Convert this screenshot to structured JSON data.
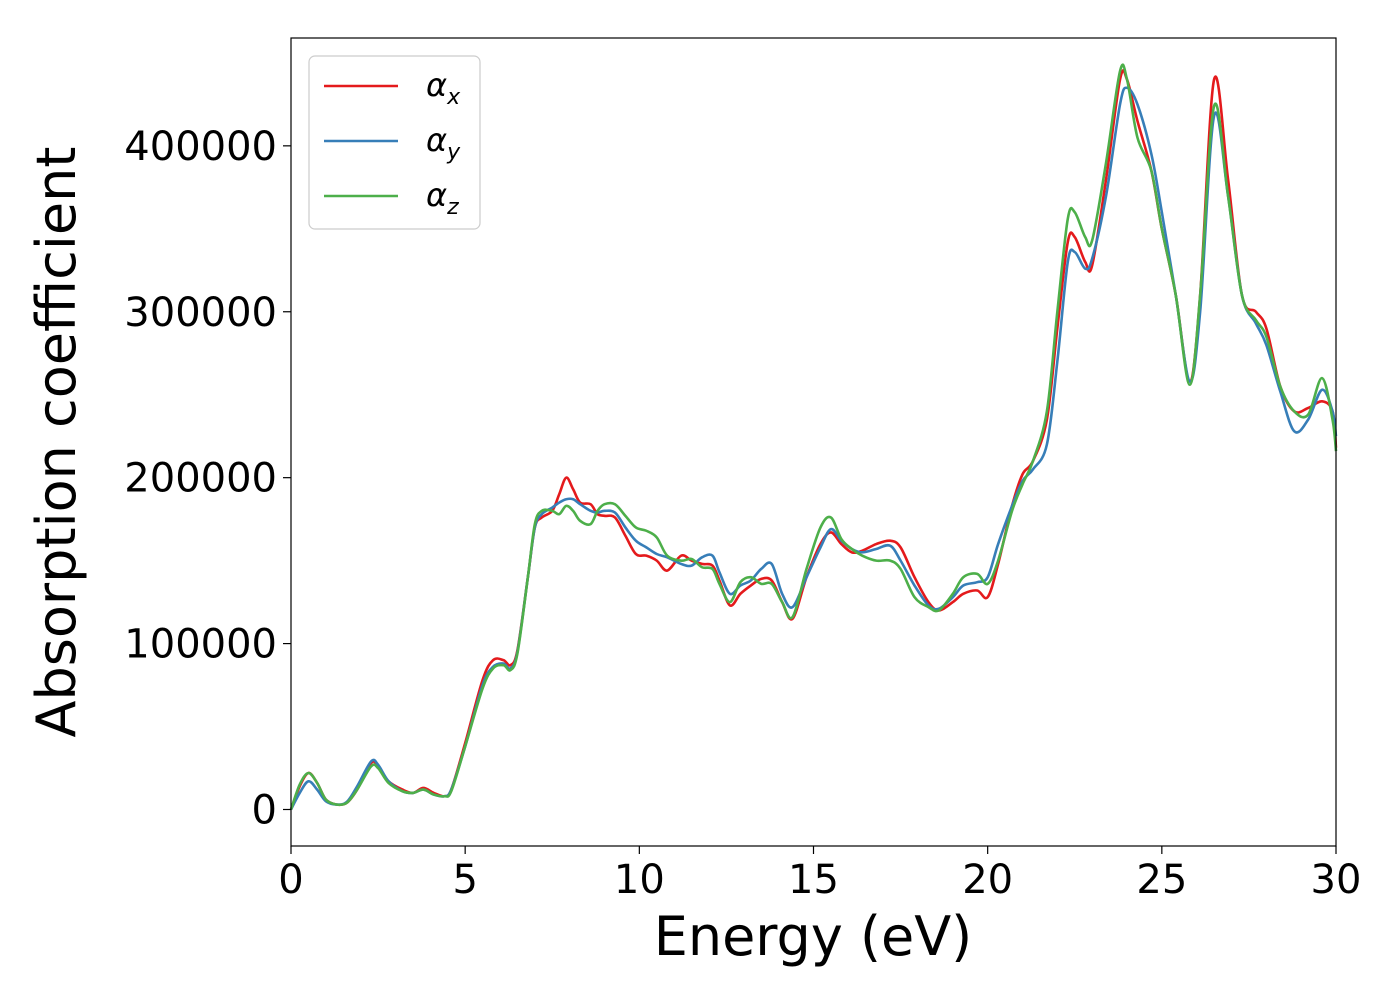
{
  "chart_data": {
    "type": "line",
    "title": "",
    "xlabel": "Energy (eV)",
    "ylabel": "Absorption coefficient",
    "xlim": [
      0,
      30
    ],
    "ylim": [
      -22000,
      465000
    ],
    "xticks": [
      0,
      5,
      10,
      15,
      20,
      25,
      30
    ],
    "xtick_labels": [
      "0",
      "5",
      "10",
      "15",
      "20",
      "25",
      "30"
    ],
    "yticks": [
      0,
      100000,
      200000,
      300000,
      400000
    ],
    "ytick_labels": [
      "0",
      "100000",
      "200000",
      "300000",
      "400000"
    ],
    "grid": false,
    "legend_position": "top-left",
    "series": [
      {
        "name": "α",
        "subscript": "x",
        "color": "#e41a1c",
        "points": [
          [
            0,
            0
          ],
          [
            0.25,
            14000
          ],
          [
            0.5,
            22000
          ],
          [
            0.75,
            16000
          ],
          [
            1.0,
            6000
          ],
          [
            1.3,
            3000
          ],
          [
            1.6,
            4000
          ],
          [
            1.9,
            12000
          ],
          [
            2.3,
            28000
          ],
          [
            2.5,
            26000
          ],
          [
            2.8,
            17000
          ],
          [
            3.2,
            12000
          ],
          [
            3.5,
            10000
          ],
          [
            3.8,
            13000
          ],
          [
            4.1,
            10000
          ],
          [
            4.4,
            8000
          ],
          [
            4.6,
            12000
          ],
          [
            5.0,
            40000
          ],
          [
            5.5,
            78000
          ],
          [
            5.8,
            90000
          ],
          [
            6.1,
            90000
          ],
          [
            6.3,
            87000
          ],
          [
            6.5,
            96000
          ],
          [
            6.8,
            140000
          ],
          [
            7.0,
            170000
          ],
          [
            7.2,
            176000
          ],
          [
            7.5,
            180000
          ],
          [
            7.7,
            190000
          ],
          [
            7.9,
            200000
          ],
          [
            8.1,
            193000
          ],
          [
            8.3,
            185000
          ],
          [
            8.6,
            184000
          ],
          [
            8.8,
            178000
          ],
          [
            9.0,
            177000
          ],
          [
            9.3,
            176000
          ],
          [
            9.6,
            165000
          ],
          [
            9.9,
            154000
          ],
          [
            10.2,
            153000
          ],
          [
            10.5,
            150000
          ],
          [
            10.8,
            144000
          ],
          [
            11.2,
            153000
          ],
          [
            11.5,
            150000
          ],
          [
            11.8,
            148000
          ],
          [
            12.1,
            147000
          ],
          [
            12.3,
            138000
          ],
          [
            12.6,
            123000
          ],
          [
            12.9,
            130000
          ],
          [
            13.2,
            135000
          ],
          [
            13.5,
            139000
          ],
          [
            13.8,
            138000
          ],
          [
            14.1,
            125000
          ],
          [
            14.4,
            115000
          ],
          [
            14.8,
            140000
          ],
          [
            15.2,
            160000
          ],
          [
            15.5,
            167000
          ],
          [
            15.8,
            160000
          ],
          [
            16.1,
            155000
          ],
          [
            16.4,
            156000
          ],
          [
            16.8,
            160000
          ],
          [
            17.2,
            162000
          ],
          [
            17.5,
            158000
          ],
          [
            17.9,
            140000
          ],
          [
            18.3,
            125000
          ],
          [
            18.6,
            120000
          ],
          [
            19.0,
            125000
          ],
          [
            19.3,
            130000
          ],
          [
            19.7,
            132000
          ],
          [
            20.0,
            128000
          ],
          [
            20.3,
            148000
          ],
          [
            20.7,
            183000
          ],
          [
            21.0,
            202000
          ],
          [
            21.3,
            210000
          ],
          [
            21.7,
            235000
          ],
          [
            22.0,
            290000
          ],
          [
            22.3,
            342000
          ],
          [
            22.5,
            345000
          ],
          [
            22.8,
            330000
          ],
          [
            23.0,
            328000
          ],
          [
            23.4,
            380000
          ],
          [
            23.8,
            440000
          ],
          [
            24.0,
            440000
          ],
          [
            24.3,
            415000
          ],
          [
            24.7,
            385000
          ],
          [
            25.0,
            350000
          ],
          [
            25.4,
            310000
          ],
          [
            25.8,
            258000
          ],
          [
            26.1,
            310000
          ],
          [
            26.5,
            440000
          ],
          [
            26.9,
            380000
          ],
          [
            27.3,
            310000
          ],
          [
            27.7,
            300000
          ],
          [
            28.0,
            290000
          ],
          [
            28.4,
            255000
          ],
          [
            28.8,
            240000
          ],
          [
            29.2,
            242000
          ],
          [
            29.6,
            246000
          ],
          [
            29.9,
            240000
          ],
          [
            30.0,
            218000
          ]
        ]
      },
      {
        "name": "α",
        "subscript": "y",
        "color": "#377eb8",
        "points": [
          [
            0,
            0
          ],
          [
            0.25,
            10000
          ],
          [
            0.5,
            17000
          ],
          [
            0.75,
            12000
          ],
          [
            1.0,
            5000
          ],
          [
            1.3,
            3000
          ],
          [
            1.6,
            4500
          ],
          [
            1.9,
            14000
          ],
          [
            2.3,
            29000
          ],
          [
            2.5,
            27000
          ],
          [
            2.8,
            17000
          ],
          [
            3.2,
            11000
          ],
          [
            3.5,
            10000
          ],
          [
            3.8,
            12000
          ],
          [
            4.1,
            9000
          ],
          [
            4.4,
            8000
          ],
          [
            4.6,
            12000
          ],
          [
            5.0,
            38000
          ],
          [
            5.5,
            75000
          ],
          [
            5.8,
            86000
          ],
          [
            6.1,
            88000
          ],
          [
            6.3,
            85000
          ],
          [
            6.5,
            95000
          ],
          [
            6.8,
            140000
          ],
          [
            7.0,
            170000
          ],
          [
            7.2,
            178000
          ],
          [
            7.5,
            182000
          ],
          [
            7.7,
            185000
          ],
          [
            7.9,
            187000
          ],
          [
            8.1,
            187000
          ],
          [
            8.3,
            184000
          ],
          [
            8.6,
            180000
          ],
          [
            8.8,
            179000
          ],
          [
            9.0,
            180000
          ],
          [
            9.3,
            179000
          ],
          [
            9.6,
            170000
          ],
          [
            9.9,
            162000
          ],
          [
            10.2,
            158000
          ],
          [
            10.5,
            154000
          ],
          [
            10.8,
            152000
          ],
          [
            11.2,
            148000
          ],
          [
            11.5,
            147000
          ],
          [
            11.8,
            152000
          ],
          [
            12.1,
            153000
          ],
          [
            12.3,
            143000
          ],
          [
            12.6,
            130000
          ],
          [
            12.9,
            135000
          ],
          [
            13.2,
            138000
          ],
          [
            13.5,
            145000
          ],
          [
            13.8,
            148000
          ],
          [
            14.1,
            130000
          ],
          [
            14.4,
            122000
          ],
          [
            14.8,
            140000
          ],
          [
            15.2,
            158000
          ],
          [
            15.5,
            169000
          ],
          [
            15.8,
            162000
          ],
          [
            16.1,
            157000
          ],
          [
            16.4,
            155000
          ],
          [
            16.8,
            157000
          ],
          [
            17.2,
            159000
          ],
          [
            17.5,
            150000
          ],
          [
            17.9,
            135000
          ],
          [
            18.3,
            123000
          ],
          [
            18.6,
            121000
          ],
          [
            19.0,
            128000
          ],
          [
            19.3,
            135000
          ],
          [
            19.7,
            137000
          ],
          [
            20.0,
            140000
          ],
          [
            20.3,
            160000
          ],
          [
            20.7,
            183000
          ],
          [
            21.0,
            198000
          ],
          [
            21.3,
            205000
          ],
          [
            21.7,
            220000
          ],
          [
            22.0,
            270000
          ],
          [
            22.3,
            330000
          ],
          [
            22.5,
            336000
          ],
          [
            22.8,
            326000
          ],
          [
            23.0,
            332000
          ],
          [
            23.4,
            370000
          ],
          [
            23.8,
            425000
          ],
          [
            24.0,
            435000
          ],
          [
            24.3,
            425000
          ],
          [
            24.7,
            395000
          ],
          [
            25.0,
            360000
          ],
          [
            25.4,
            310000
          ],
          [
            25.8,
            258000
          ],
          [
            26.1,
            300000
          ],
          [
            26.5,
            418000
          ],
          [
            26.9,
            370000
          ],
          [
            27.3,
            310000
          ],
          [
            27.7,
            293000
          ],
          [
            28.0,
            280000
          ],
          [
            28.4,
            252000
          ],
          [
            28.8,
            228000
          ],
          [
            29.2,
            235000
          ],
          [
            29.6,
            253000
          ],
          [
            29.9,
            240000
          ],
          [
            30.0,
            225000
          ]
        ]
      },
      {
        "name": "α",
        "subscript": "z",
        "color": "#4daf4a",
        "points": [
          [
            0,
            0
          ],
          [
            0.25,
            15000
          ],
          [
            0.5,
            22000
          ],
          [
            0.75,
            16000
          ],
          [
            1.0,
            6000
          ],
          [
            1.3,
            3000
          ],
          [
            1.6,
            4000
          ],
          [
            1.9,
            12000
          ],
          [
            2.3,
            26000
          ],
          [
            2.5,
            25000
          ],
          [
            2.8,
            16000
          ],
          [
            3.2,
            11000
          ],
          [
            3.5,
            10000
          ],
          [
            3.8,
            12000
          ],
          [
            4.1,
            9000
          ],
          [
            4.4,
            8000
          ],
          [
            4.6,
            11000
          ],
          [
            5.0,
            38000
          ],
          [
            5.5,
            73000
          ],
          [
            5.8,
            85000
          ],
          [
            6.1,
            87000
          ],
          [
            6.3,
            84000
          ],
          [
            6.5,
            94000
          ],
          [
            6.8,
            140000
          ],
          [
            7.0,
            172000
          ],
          [
            7.2,
            180000
          ],
          [
            7.5,
            180000
          ],
          [
            7.7,
            178000
          ],
          [
            7.9,
            183000
          ],
          [
            8.1,
            180000
          ],
          [
            8.3,
            174000
          ],
          [
            8.6,
            172000
          ],
          [
            8.8,
            180000
          ],
          [
            9.0,
            184000
          ],
          [
            9.3,
            184000
          ],
          [
            9.6,
            177000
          ],
          [
            9.9,
            170000
          ],
          [
            10.2,
            168000
          ],
          [
            10.5,
            164000
          ],
          [
            10.8,
            153000
          ],
          [
            11.2,
            150000
          ],
          [
            11.5,
            151000
          ],
          [
            11.8,
            146000
          ],
          [
            12.1,
            145000
          ],
          [
            12.3,
            136000
          ],
          [
            12.6,
            125000
          ],
          [
            12.9,
            137000
          ],
          [
            13.2,
            140000
          ],
          [
            13.5,
            136000
          ],
          [
            13.8,
            136000
          ],
          [
            14.1,
            125000
          ],
          [
            14.4,
            116000
          ],
          [
            14.8,
            145000
          ],
          [
            15.2,
            170000
          ],
          [
            15.5,
            176000
          ],
          [
            15.8,
            163000
          ],
          [
            16.1,
            157000
          ],
          [
            16.4,
            153000
          ],
          [
            16.8,
            150000
          ],
          [
            17.2,
            150000
          ],
          [
            17.5,
            145000
          ],
          [
            17.9,
            128000
          ],
          [
            18.3,
            122000
          ],
          [
            18.6,
            120000
          ],
          [
            19.0,
            130000
          ],
          [
            19.3,
            140000
          ],
          [
            19.7,
            142000
          ],
          [
            20.0,
            136000
          ],
          [
            20.3,
            150000
          ],
          [
            20.7,
            180000
          ],
          [
            21.0,
            196000
          ],
          [
            21.3,
            210000
          ],
          [
            21.7,
            240000
          ],
          [
            22.0,
            300000
          ],
          [
            22.3,
            356000
          ],
          [
            22.5,
            360000
          ],
          [
            22.8,
            345000
          ],
          [
            23.0,
            343000
          ],
          [
            23.4,
            390000
          ],
          [
            23.8,
            445000
          ],
          [
            24.0,
            440000
          ],
          [
            24.3,
            405000
          ],
          [
            24.7,
            385000
          ],
          [
            25.0,
            350000
          ],
          [
            25.4,
            310000
          ],
          [
            25.8,
            256000
          ],
          [
            26.1,
            310000
          ],
          [
            26.5,
            424000
          ],
          [
            26.9,
            370000
          ],
          [
            27.3,
            310000
          ],
          [
            27.7,
            295000
          ],
          [
            28.0,
            285000
          ],
          [
            28.4,
            255000
          ],
          [
            28.8,
            240000
          ],
          [
            29.2,
            238000
          ],
          [
            29.6,
            260000
          ],
          [
            29.9,
            235000
          ],
          [
            30.0,
            216000
          ]
        ]
      }
    ]
  }
}
